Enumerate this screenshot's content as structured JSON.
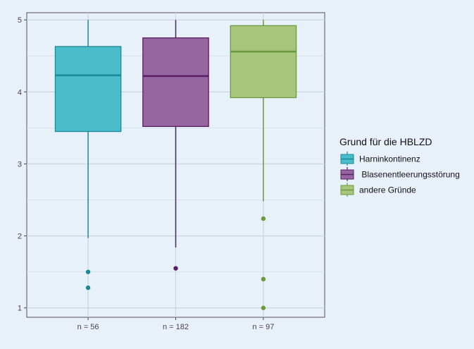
{
  "chart_data": {
    "type": "boxplot",
    "legend": {
      "title": "Grund für die HBLZD",
      "placement": "right"
    },
    "categories": [
      "n = 56",
      "n = 182",
      "n = 97"
    ],
    "ylim": [
      0.87,
      5.1
    ],
    "yticks": [
      1,
      2,
      3,
      4,
      5
    ],
    "grid": true,
    "series": [
      {
        "name": "Harninkontinenz",
        "label": "Harninkontinenz",
        "fill": "#4bbccc",
        "stroke": "#1a8a98",
        "whisker_low": 1.97,
        "q1": 3.45,
        "median": 4.23,
        "q3": 4.63,
        "whisker_high": 5.0,
        "outliers": [
          1.5,
          1.28
        ]
      },
      {
        "name": "Blasenentleerungsstörung",
        "label": " Blasenentleerungsstörung",
        "fill": "#9566a0",
        "stroke": "#5a1e63",
        "whisker_low": 1.84,
        "q1": 3.52,
        "median": 4.22,
        "q3": 4.75,
        "whisker_high": 5.0,
        "outliers": [
          1.55
        ]
      },
      {
        "name": "andere Gründe",
        "label": "andere Gründe",
        "fill": "#a8c57c",
        "stroke": "#6a9a3e",
        "whisker_low": 2.48,
        "q1": 3.92,
        "median": 4.56,
        "q3": 4.92,
        "whisker_high": 5.0,
        "outliers": [
          2.24,
          1.4,
          1.0
        ]
      }
    ]
  }
}
